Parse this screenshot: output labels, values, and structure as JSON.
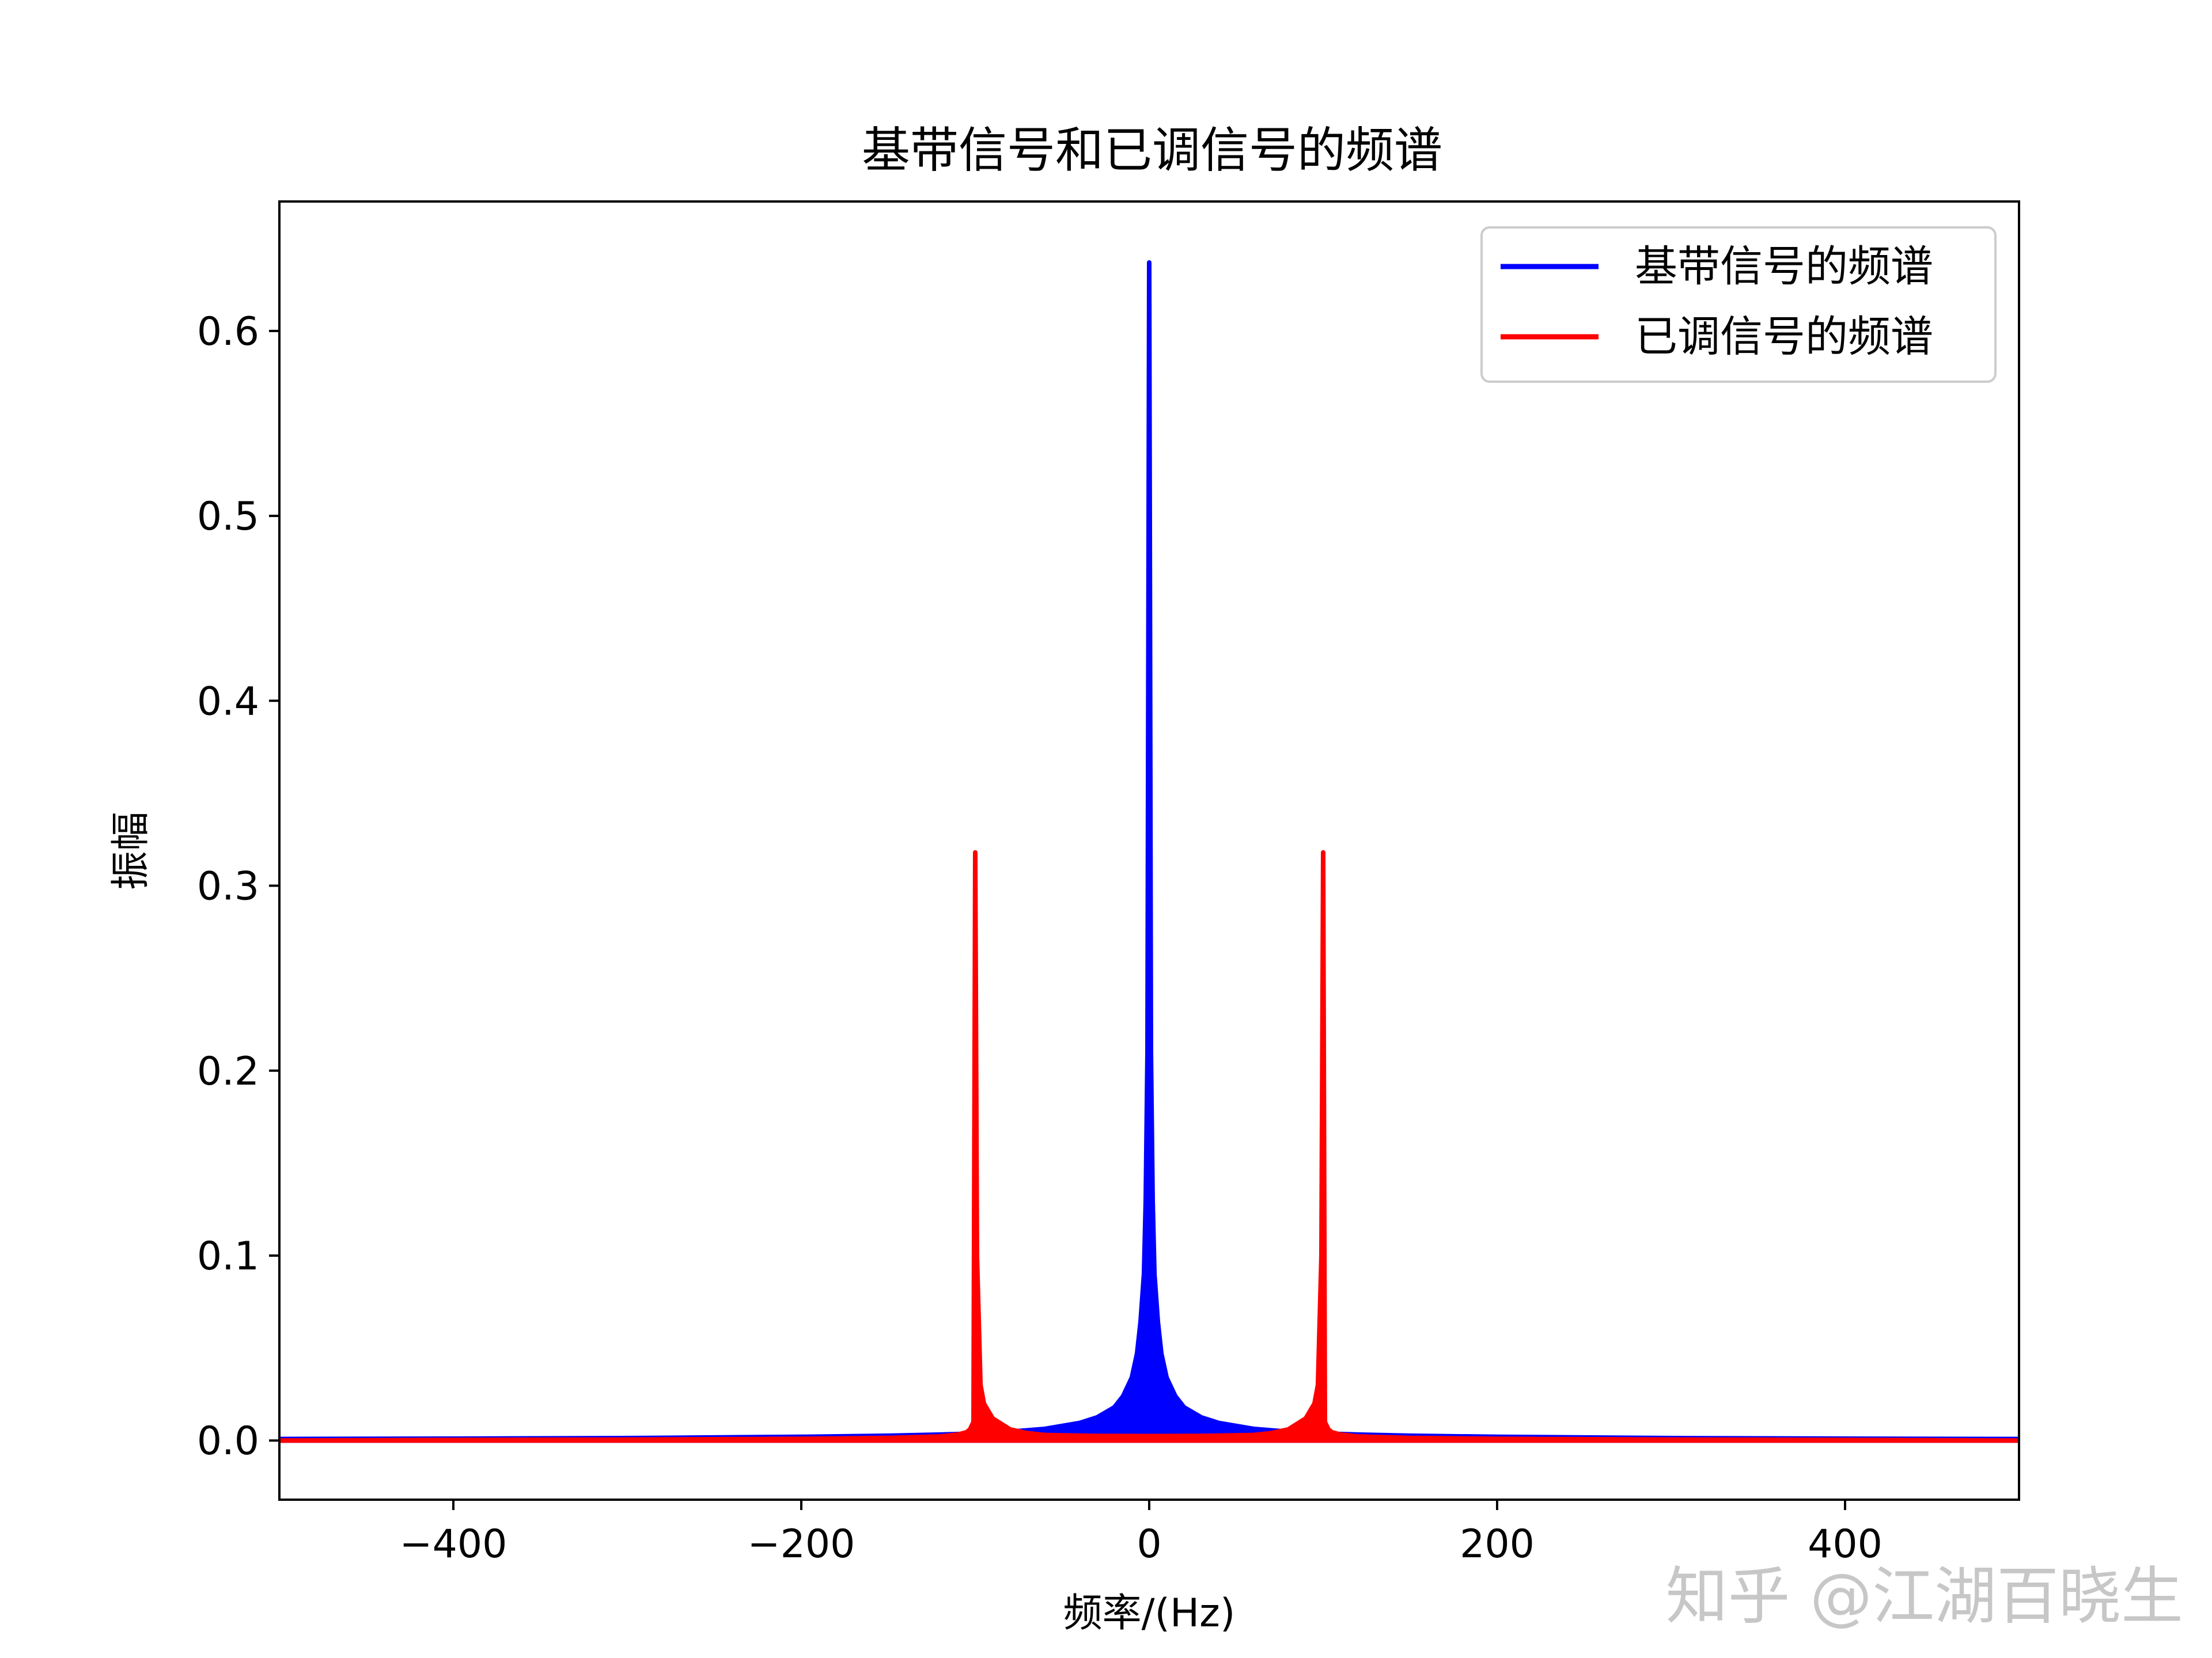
{
  "chart_data": {
    "type": "line",
    "title": "基带信号和已调信号的频谱",
    "xlabel": "频率/(Hz)",
    "ylabel": "振幅",
    "xlim": [
      -500,
      500
    ],
    "ylim": [
      -0.032,
      0.67
    ],
    "xticks": [
      -400,
      -200,
      0,
      200,
      400
    ],
    "xtick_labels": [
      "−400",
      "−200",
      "0",
      "200",
      "400"
    ],
    "yticks": [
      0.0,
      0.1,
      0.2,
      0.3,
      0.4,
      0.5,
      0.6
    ],
    "ytick_labels": [
      "0.0",
      "0.1",
      "0.2",
      "0.3",
      "0.4",
      "0.5",
      "0.6"
    ],
    "grid": false,
    "legend_position": "top-right",
    "series": [
      {
        "name": "基带信号的频谱",
        "color": "#0000ff",
        "x": [
          -500,
          -400,
          -300,
          -200,
          -150,
          -120,
          -100,
          -80,
          -60,
          -40,
          -30,
          -20,
          -15,
          -10,
          -7,
          -5,
          -3,
          -2,
          -1,
          0,
          1,
          2,
          3,
          5,
          7,
          10,
          15,
          20,
          30,
          40,
          60,
          80,
          100,
          120,
          150,
          200,
          300,
          400,
          500
        ],
        "y": [
          0.0008,
          0.001,
          0.0013,
          0.002,
          0.0026,
          0.0032,
          0.0038,
          0.0048,
          0.0063,
          0.0095,
          0.0125,
          0.018,
          0.024,
          0.034,
          0.047,
          0.064,
          0.09,
          0.13,
          0.21,
          0.637,
          0.21,
          0.13,
          0.09,
          0.064,
          0.047,
          0.034,
          0.024,
          0.018,
          0.0125,
          0.0095,
          0.0063,
          0.0048,
          0.0038,
          0.0032,
          0.0026,
          0.002,
          0.0013,
          0.001,
          0.0008
        ]
      },
      {
        "name": "已调信号的频谱",
        "color": "#ff0000",
        "x": [
          -500,
          -400,
          -300,
          -200,
          -150,
          -120,
          -110,
          -105,
          -103,
          -101,
          -100,
          -99,
          -97,
          -95,
          -90,
          -80,
          -70,
          -60,
          -50,
          -30,
          0,
          30,
          50,
          60,
          70,
          80,
          90,
          95,
          97,
          99,
          100,
          101,
          103,
          105,
          110,
          120,
          150,
          200,
          300,
          400,
          500
        ],
        "y": [
          0.0,
          0.0003,
          0.0005,
          0.0009,
          0.0014,
          0.0022,
          0.0032,
          0.0045,
          0.006,
          0.01,
          0.318,
          0.1,
          0.03,
          0.02,
          0.012,
          0.006,
          0.004,
          0.003,
          0.0028,
          0.0025,
          0.0024,
          0.0025,
          0.0028,
          0.003,
          0.004,
          0.006,
          0.012,
          0.02,
          0.03,
          0.1,
          0.318,
          0.01,
          0.006,
          0.0045,
          0.0032,
          0.0022,
          0.0014,
          0.0009,
          0.0005,
          0.0003,
          0.0
        ]
      }
    ]
  },
  "watermark": "知乎 @江湖百晓生"
}
